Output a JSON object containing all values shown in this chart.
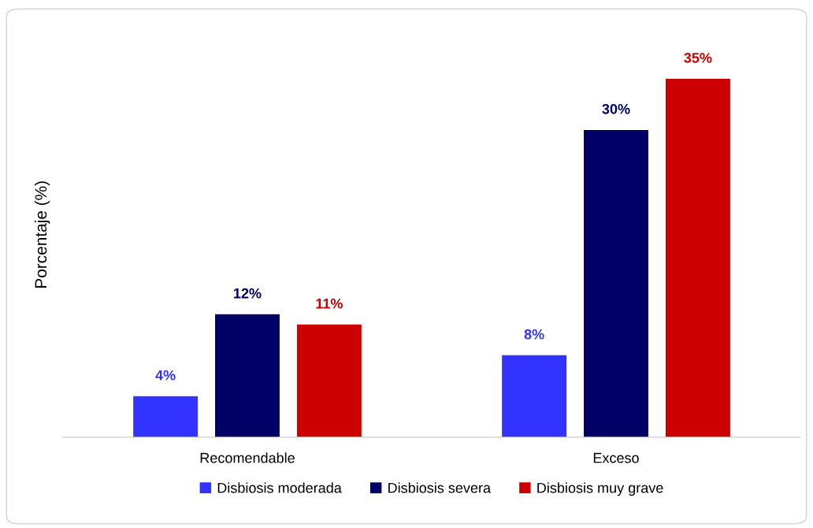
{
  "chart_data": {
    "type": "bar",
    "ylabel": "Porcentaje (%)",
    "categories": [
      "Recomendable",
      "Exceso"
    ],
    "series": [
      {
        "name": "Disbiosis moderada",
        "color": "#3333ff",
        "values": [
          4,
          8
        ],
        "value_labels": [
          "4%",
          "8%"
        ]
      },
      {
        "name": "Disbiosis severa",
        "color": "#000066",
        "values": [
          12,
          30
        ],
        "value_labels": [
          "12%",
          "30%"
        ]
      },
      {
        "name": "Disbiosis muy grave",
        "color": "#cc0000",
        "values": [
          11,
          35
        ],
        "value_labels": [
          "11%",
          "35%"
        ]
      }
    ],
    "legend": "bottom",
    "tick_labels": "x"
  }
}
